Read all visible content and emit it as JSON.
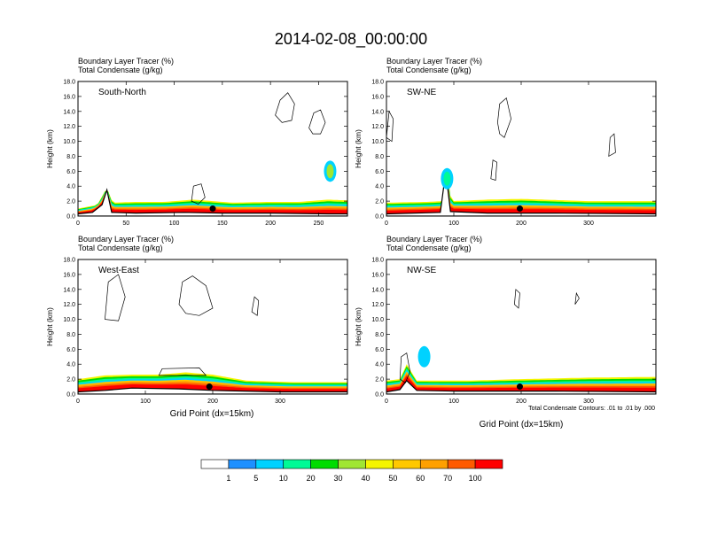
{
  "figure": {
    "title": "2014-02-08_00:00:00",
    "shared_xlabel": "Grid Point (dx=15km)",
    "contour_note": "Total Condensate Contours: .01 to .01 by .000"
  },
  "colorbar": {
    "levels": [
      "1",
      "5",
      "10",
      "20",
      "30",
      "40",
      "50",
      "60",
      "70",
      "100"
    ],
    "colors": [
      "#ffffff",
      "#1e90ff",
      "#00d2ff",
      "#00fa96",
      "#00dc00",
      "#a0e632",
      "#f5f500",
      "#ffc800",
      "#ffa000",
      "#ff5a00",
      "#ff0000"
    ]
  },
  "chart_data": [
    {
      "type": "contour",
      "panel": "South-North",
      "label": "South-North",
      "header1": "Boundary Layer Tracer    (%)",
      "header2": "Total Condensate    (g/kg)",
      "ylabel": "Height (km)",
      "xlabel": "",
      "xlim": [
        0,
        280
      ],
      "ylim": [
        0,
        18
      ],
      "xticks": [
        0,
        50,
        100,
        150,
        200,
        250
      ],
      "yticks": [
        "0.0",
        "2.0",
        "4.0",
        "6.0",
        "8.0",
        "10.0",
        "12.0",
        "14.0",
        "16.0",
        "18.0"
      ],
      "terrain": [
        [
          0,
          0.3
        ],
        [
          15,
          0.5
        ],
        [
          25,
          1.5
        ],
        [
          30,
          3.5
        ],
        [
          35,
          0.5
        ],
        [
          60,
          0.4
        ],
        [
          110,
          0.5
        ],
        [
          150,
          0.4
        ],
        [
          200,
          0.4
        ],
        [
          260,
          0.3
        ],
        [
          280,
          0.3
        ]
      ],
      "pbl_top": [
        [
          0,
          1.0
        ],
        [
          20,
          1.5
        ],
        [
          30,
          3.8
        ],
        [
          36,
          1.8
        ],
        [
          60,
          1.9
        ],
        [
          90,
          1.9
        ],
        [
          120,
          2.2
        ],
        [
          160,
          1.8
        ],
        [
          200,
          1.9
        ],
        [
          230,
          1.9
        ],
        [
          260,
          2.2
        ],
        [
          280,
          2.1
        ]
      ],
      "upper_feature": {
        "x": 262,
        "y": 6.0,
        "value": 30
      },
      "condensate_contours": [
        [
          [
            205,
            13.5
          ],
          [
            210,
            15.5
          ],
          [
            218,
            16.5
          ],
          [
            225,
            15.0
          ],
          [
            222,
            12.8
          ],
          [
            212,
            12.5
          ]
        ],
        [
          [
            240,
            11.8
          ],
          [
            245,
            13.8
          ],
          [
            252,
            14.2
          ],
          [
            257,
            12.5
          ],
          [
            252,
            11.0
          ],
          [
            244,
            11.0
          ]
        ],
        [
          [
            118,
            2.0
          ],
          [
            120,
            4.0
          ],
          [
            128,
            4.3
          ],
          [
            132,
            2.5
          ],
          [
            125,
            1.6
          ]
        ]
      ],
      "marker": {
        "x": 140,
        "y": 1.0
      }
    },
    {
      "type": "contour",
      "panel": "SW-NE",
      "label": "SW-NE",
      "header1": "Boundary Layer Tracer    (%)",
      "header2": "Total Condensate    (g/kg)",
      "ylabel": "Height (km)",
      "xlabel": "",
      "xlim": [
        0,
        400
      ],
      "ylim": [
        0,
        18
      ],
      "xticks": [
        0,
        100,
        200,
        300
      ],
      "yticks": [
        "0.0",
        "2.0",
        "4.0",
        "6.0",
        "8.0",
        "10.0",
        "12.0",
        "14.0",
        "16.0",
        "18.0"
      ],
      "terrain": [
        [
          0,
          0.3
        ],
        [
          80,
          0.5
        ],
        [
          88,
          6.0
        ],
        [
          95,
          0.6
        ],
        [
          150,
          0.4
        ],
        [
          250,
          0.4
        ],
        [
          400,
          0.3
        ]
      ],
      "pbl_top": [
        [
          0,
          1.8
        ],
        [
          60,
          1.9
        ],
        [
          85,
          2.0
        ],
        [
          90,
          6.3
        ],
        [
          96,
          2.0
        ],
        [
          150,
          2.2
        ],
        [
          200,
          2.3
        ],
        [
          300,
          2.0
        ],
        [
          400,
          2.0
        ]
      ],
      "upper_feature": {
        "x": 90,
        "y": 5.0,
        "value": 10
      },
      "condensate_contours": [
        [
          [
            165,
            12.5
          ],
          [
            168,
            15.0
          ],
          [
            178,
            15.8
          ],
          [
            185,
            13.0
          ],
          [
            175,
            10.5
          ],
          [
            168,
            11.0
          ]
        ],
        [
          [
            330,
            8.0
          ],
          [
            332,
            10.5
          ],
          [
            338,
            11.0
          ],
          [
            340,
            8.5
          ]
        ],
        [
          [
            155,
            5.0
          ],
          [
            158,
            7.5
          ],
          [
            164,
            7.2
          ],
          [
            162,
            4.8
          ]
        ],
        [
          [
            0,
            10.5
          ],
          [
            4,
            14.0
          ],
          [
            10,
            13.0
          ],
          [
            8,
            10.0
          ]
        ]
      ],
      "marker": {
        "x": 198,
        "y": 1.0
      }
    },
    {
      "type": "contour",
      "panel": "West-East",
      "label": "West-East",
      "header1": "Boundary Layer Tracer    (%)",
      "header2": "Total Condensate    (g/kg)",
      "ylabel": "Height (km)",
      "xlabel": "Grid Point (dx=15km)",
      "xlim": [
        0,
        400
      ],
      "ylim": [
        0,
        18
      ],
      "xticks": [
        0,
        100,
        200,
        300
      ],
      "yticks": [
        "0.0",
        "2.0",
        "4.0",
        "6.0",
        "8.0",
        "10.0",
        "12.0",
        "14.0",
        "16.0",
        "18.0"
      ],
      "terrain": [
        [
          0,
          0.3
        ],
        [
          40,
          0.5
        ],
        [
          80,
          0.8
        ],
        [
          150,
          0.7
        ],
        [
          200,
          0.5
        ],
        [
          300,
          0.3
        ],
        [
          400,
          0.3
        ]
      ],
      "pbl_top": [
        [
          0,
          2.0
        ],
        [
          40,
          2.5
        ],
        [
          80,
          2.6
        ],
        [
          120,
          2.6
        ],
        [
          160,
          2.9
        ],
        [
          200,
          2.6
        ],
        [
          250,
          1.8
        ],
        [
          320,
          1.6
        ],
        [
          400,
          1.6
        ]
      ],
      "upper_feature": null,
      "condensate_contours": [
        [
          [
            258,
            11.0
          ],
          [
            262,
            13.0
          ],
          [
            268,
            12.5
          ],
          [
            266,
            10.5
          ]
        ],
        [
          [
            150,
            12.0
          ],
          [
            155,
            15.0
          ],
          [
            170,
            15.8
          ],
          [
            190,
            14.5
          ],
          [
            200,
            11.5
          ],
          [
            180,
            10.5
          ],
          [
            160,
            10.8
          ]
        ],
        [
          [
            40,
            10.0
          ],
          [
            45,
            15.0
          ],
          [
            60,
            16.0
          ],
          [
            70,
            13.0
          ],
          [
            60,
            9.8
          ]
        ],
        [
          [
            120,
            2.5
          ],
          [
            125,
            3.4
          ],
          [
            180,
            3.5
          ],
          [
            190,
            2.5
          ]
        ]
      ],
      "marker": {
        "x": 195,
        "y": 1.0
      }
    },
    {
      "type": "contour",
      "panel": "NW-SE",
      "label": "NW-SE",
      "header1": "Boundary Layer Tracer    (%)",
      "header2": "Total Condensate    (g/kg)",
      "ylabel": "Height (km)",
      "xlabel": "Grid Point (dx=15km)",
      "xlim": [
        0,
        400
      ],
      "ylim": [
        0,
        18
      ],
      "xticks": [
        0,
        100,
        200,
        300
      ],
      "yticks": [
        "0.0",
        "2.0",
        "4.0",
        "6.0",
        "8.0",
        "10.0",
        "12.0",
        "14.0",
        "16.0",
        "18.0"
      ],
      "terrain": [
        [
          0,
          0.3
        ],
        [
          20,
          0.6
        ],
        [
          30,
          1.8
        ],
        [
          45,
          0.5
        ],
        [
          100,
          0.4
        ],
        [
          250,
          0.4
        ],
        [
          400,
          0.3
        ]
      ],
      "pbl_top": [
        [
          0,
          1.8
        ],
        [
          20,
          2.0
        ],
        [
          30,
          4.0
        ],
        [
          45,
          1.8
        ],
        [
          120,
          1.8
        ],
        [
          200,
          2.0
        ],
        [
          300,
          2.2
        ],
        [
          400,
          2.3
        ]
      ],
      "upper_feature": {
        "x": 56,
        "y": 5.0,
        "value": 5
      },
      "condensate_contours": [
        [
          [
            190,
            12.0
          ],
          [
            192,
            14.0
          ],
          [
            198,
            13.5
          ],
          [
            196,
            11.5
          ]
        ],
        [
          [
            280,
            12.0
          ],
          [
            282,
            13.5
          ],
          [
            286,
            12.8
          ]
        ],
        [
          [
            20,
            2.0
          ],
          [
            22,
            5.0
          ],
          [
            30,
            5.5
          ],
          [
            35,
            3.0
          ],
          [
            28,
            1.5
          ]
        ]
      ],
      "marker": {
        "x": 198,
        "y": 1.0
      }
    }
  ]
}
